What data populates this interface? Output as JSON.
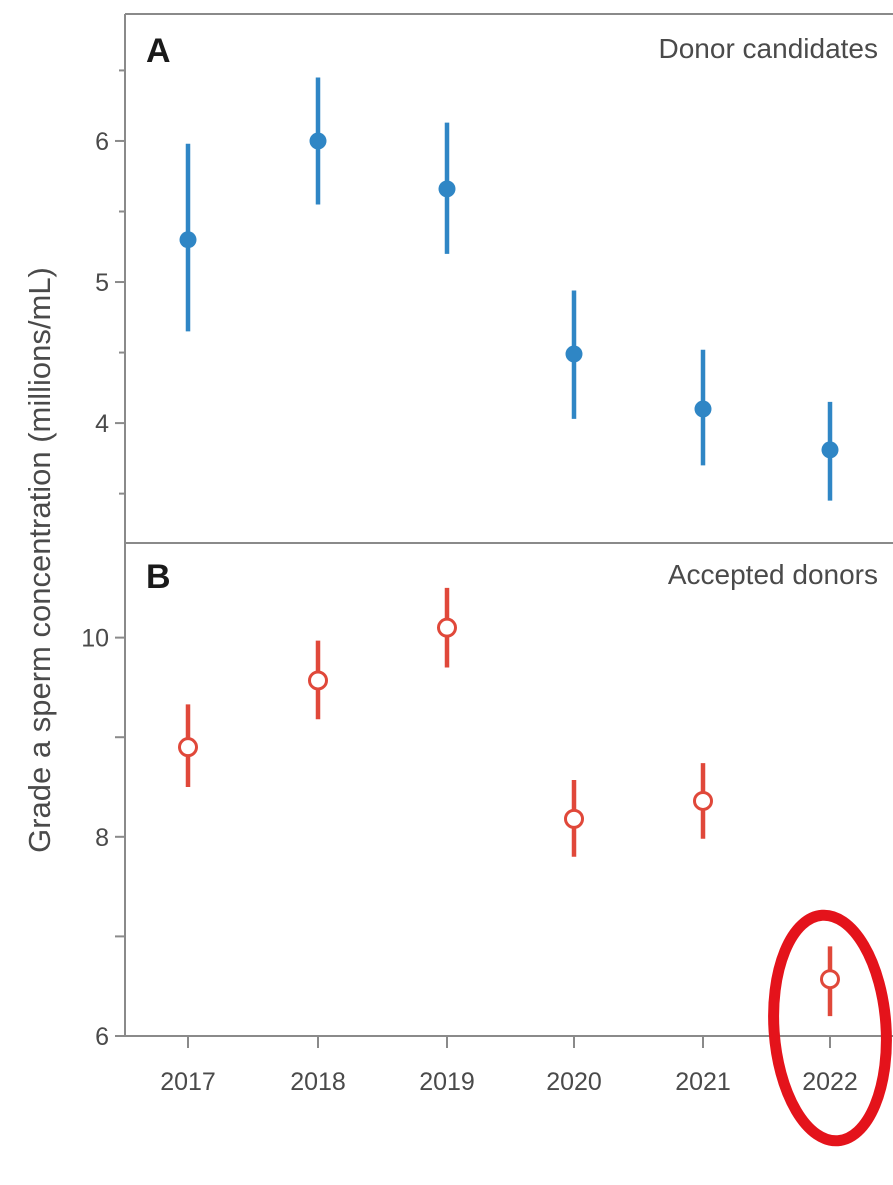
{
  "chart_data": [
    {
      "type": "scatter",
      "panel_label": "A",
      "title": "Donor candidates",
      "ylabel": "Grade a sperm concentration (millions/mL)",
      "ylim": [
        3.15,
        6.9
      ],
      "yticks": [
        4,
        5,
        6
      ],
      "ytick_labels": [
        "4",
        "5",
        "6"
      ],
      "categories": [
        "2017",
        "2018",
        "2019",
        "2020",
        "2021",
        "2022"
      ],
      "series": [
        {
          "values": [
            5.3,
            6.0,
            5.66,
            4.49,
            4.1,
            3.81
          ],
          "lower": [
            4.65,
            5.55,
            5.2,
            4.03,
            3.7,
            3.45
          ],
          "upper": [
            5.98,
            6.45,
            6.13,
            4.94,
            4.52,
            4.15
          ],
          "marker": "filled-circle",
          "color": "#2f86c5"
        }
      ],
      "grid": false
    },
    {
      "type": "scatter",
      "panel_label": "B",
      "title": "Accepted donors",
      "ylim": [
        6.0,
        10.95
      ],
      "yticks": [
        6,
        7,
        8,
        9,
        10
      ],
      "ytick_labels": [
        "6",
        "",
        "8",
        "",
        "10"
      ],
      "categories": [
        "2017",
        "2018",
        "2019",
        "2020",
        "2021",
        "2022"
      ],
      "xtick_labels": [
        "2017",
        "2018",
        "2019",
        "2020",
        "2021",
        "2022"
      ],
      "series": [
        {
          "values": [
            8.9,
            9.57,
            10.1,
            8.18,
            8.36,
            6.57
          ],
          "lower": [
            8.5,
            9.18,
            9.7,
            7.8,
            7.98,
            6.2
          ],
          "upper": [
            9.33,
            9.97,
            10.5,
            8.57,
            8.74,
            6.9
          ],
          "marker": "open-circle",
          "color": "#e0483a"
        }
      ],
      "grid": false,
      "annotation": {
        "shape": "ellipse",
        "target_category": "2022",
        "color": "#e4131b"
      }
    }
  ]
}
